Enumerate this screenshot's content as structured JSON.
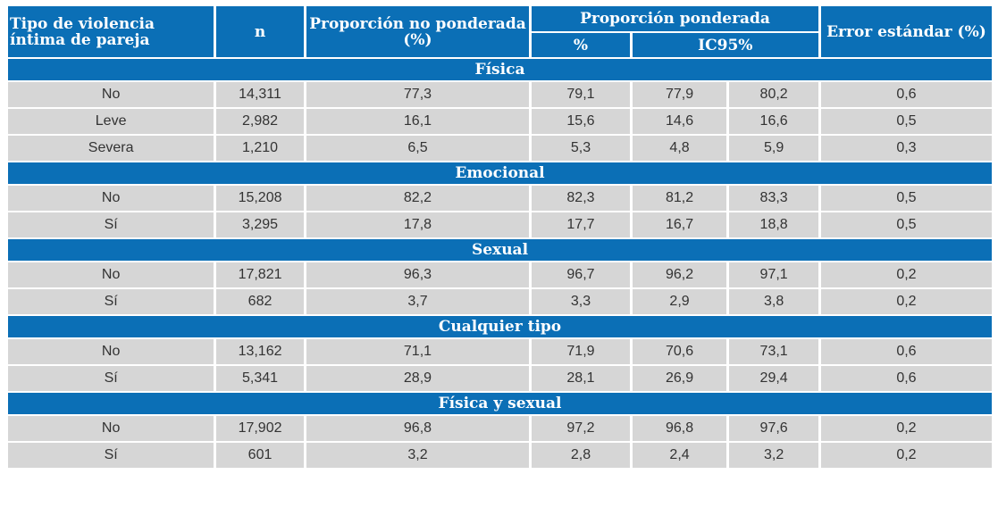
{
  "headers": {
    "tipo": "Tipo de violencia íntima de pareja",
    "n": "n",
    "no_ponderada": "Proporción no ponderada (%)",
    "ponderada": "Proporción ponderada",
    "pct": "%",
    "ic95": "IC95%",
    "error": "Error estándar (%)"
  },
  "sections": [
    {
      "title": "Física",
      "rows": [
        {
          "label": "No",
          "n": "14,311",
          "no_pond": "77,3",
          "pct": "79,1",
          "ic_low": "77,9",
          "ic_high": "80,2",
          "err": "0,6"
        },
        {
          "label": "Leve",
          "n": "2,982",
          "no_pond": "16,1",
          "pct": "15,6",
          "ic_low": "14,6",
          "ic_high": "16,6",
          "err": "0,5"
        },
        {
          "label": "Severa",
          "n": "1,210",
          "no_pond": "6,5",
          "pct": "5,3",
          "ic_low": "4,8",
          "ic_high": "5,9",
          "err": "0,3"
        }
      ]
    },
    {
      "title": "Emocional",
      "rows": [
        {
          "label": "No",
          "n": "15,208",
          "no_pond": "82,2",
          "pct": "82,3",
          "ic_low": "81,2",
          "ic_high": "83,3",
          "err": "0,5"
        },
        {
          "label": "Sí",
          "n": "3,295",
          "no_pond": "17,8",
          "pct": "17,7",
          "ic_low": "16,7",
          "ic_high": "18,8",
          "err": "0,5"
        }
      ]
    },
    {
      "title": "Sexual",
      "rows": [
        {
          "label": "No",
          "n": "17,821",
          "no_pond": "96,3",
          "pct": "96,7",
          "ic_low": "96,2",
          "ic_high": "97,1",
          "err": "0,2"
        },
        {
          "label": "Sí",
          "n": "682",
          "no_pond": "3,7",
          "pct": "3,3",
          "ic_low": "2,9",
          "ic_high": "3,8",
          "err": "0,2"
        }
      ]
    },
    {
      "title": "Cualquier tipo",
      "rows": [
        {
          "label": "No",
          "n": "13,162",
          "no_pond": "71,1",
          "pct": "71,9",
          "ic_low": "70,6",
          "ic_high": "73,1",
          "err": "0,6"
        },
        {
          "label": "Sí",
          "n": "5,341",
          "no_pond": "28,9",
          "pct": "28,1",
          "ic_low": "26,9",
          "ic_high": "29,4",
          "err": "0,6"
        }
      ]
    },
    {
      "title": "Física y sexual",
      "rows": [
        {
          "label": "No",
          "n": "17,902",
          "no_pond": "96,8",
          "pct": "97,2",
          "ic_low": "96,8",
          "ic_high": "97,6",
          "err": "0,2"
        },
        {
          "label": "Sí",
          "n": "601",
          "no_pond": "3,2",
          "pct": "2,8",
          "ic_low": "2,4",
          "ic_high": "3,2",
          "err": "0,2"
        }
      ]
    }
  ]
}
